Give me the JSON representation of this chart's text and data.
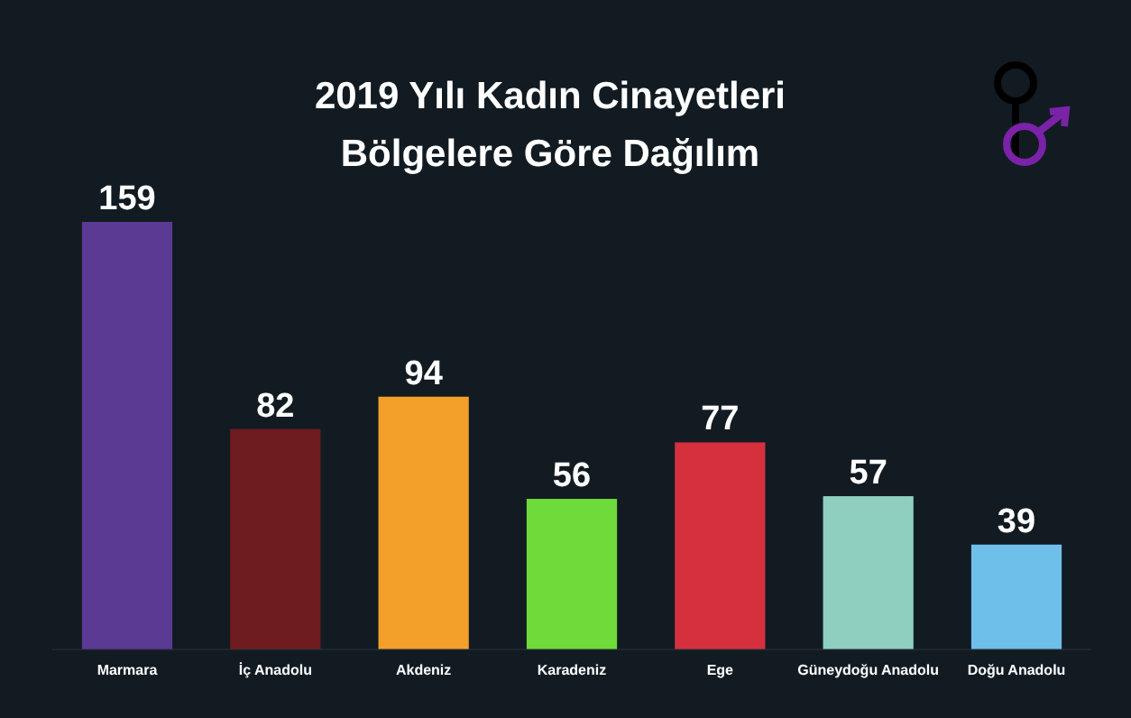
{
  "chart_data": {
    "type": "bar",
    "title": "2019 Yılı Kadın Cinayetleri\nBölgelere Göre Dağılım",
    "categories": [
      "Marmara",
      "İç Anadolu",
      "Akdeniz",
      "Karadeniz",
      "Ege",
      "Güneydoğu Anadolu",
      "Doğu Anadolu"
    ],
    "values": [
      159,
      82,
      94,
      56,
      77,
      57,
      39
    ],
    "colors": [
      "#5b3a94",
      "#6e1c1f",
      "#f2a02a",
      "#6edb3a",
      "#d6303f",
      "#8ecfc0",
      "#6ebfea"
    ],
    "data_labels": true
  }
}
